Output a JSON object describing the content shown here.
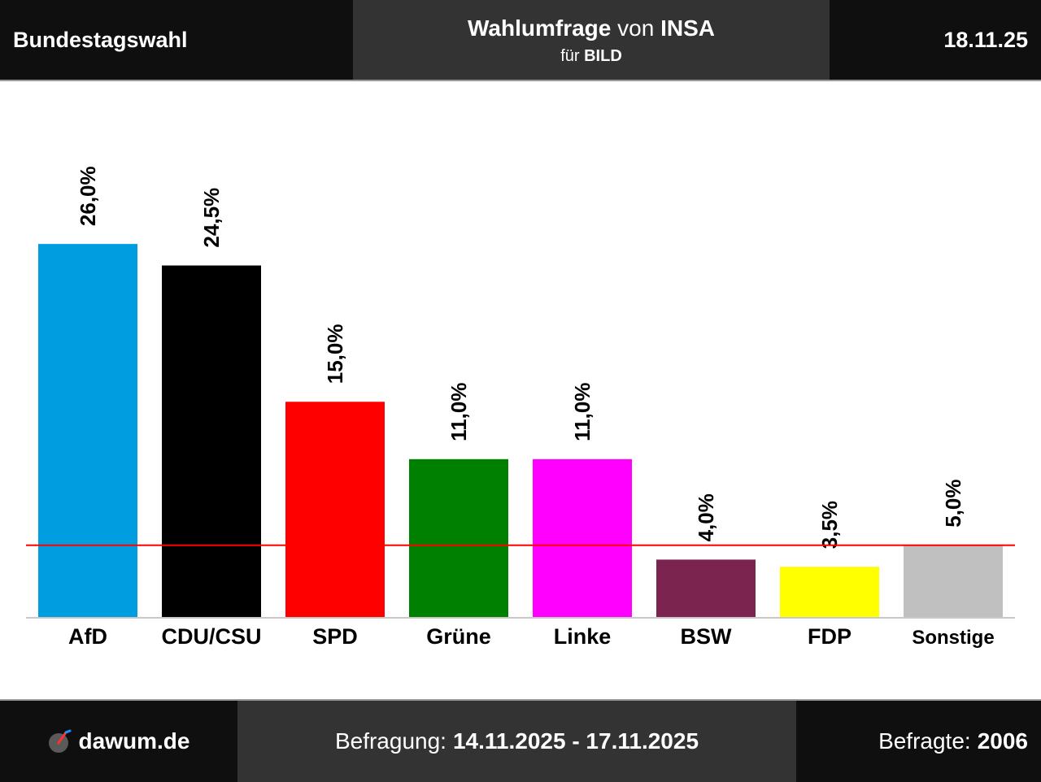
{
  "header": {
    "left": "Bundestagswahl",
    "title_main": "Wahlumfrage",
    "title_von": "von",
    "title_institute": "INSA",
    "sub_fuer": "für",
    "sub_client": "BILD",
    "date": "18.11.25"
  },
  "footer": {
    "logo_text": "dawum.de",
    "period_label": "Befragung:",
    "period_value": "14.11.2025 - 17.11.2025",
    "respondents_label": "Befragte:",
    "respondents_value": "2006"
  },
  "chart_data": {
    "type": "bar",
    "title": "",
    "xlabel": "",
    "ylabel": "",
    "categories": [
      "AfD",
      "CDU/CSU",
      "SPD",
      "Grüne",
      "Linke",
      "BSW",
      "FDP",
      "Sonstige"
    ],
    "values": [
      26.0,
      24.5,
      15.0,
      11.0,
      11.0,
      4.0,
      3.5,
      5.0
    ],
    "value_labels": [
      "26,0%",
      "24,5%",
      "15,0%",
      "11,0%",
      "11,0%",
      "4,0%",
      "3,5%",
      "5,0%"
    ],
    "colors": [
      "#009ee0",
      "#000000",
      "#ff0000",
      "#008000",
      "#ff00ff",
      "#7b2450",
      "#ffff00",
      "#c0c0c0"
    ],
    "threshold": 5.0,
    "threshold_color": "#ff0000",
    "grid": false
  }
}
